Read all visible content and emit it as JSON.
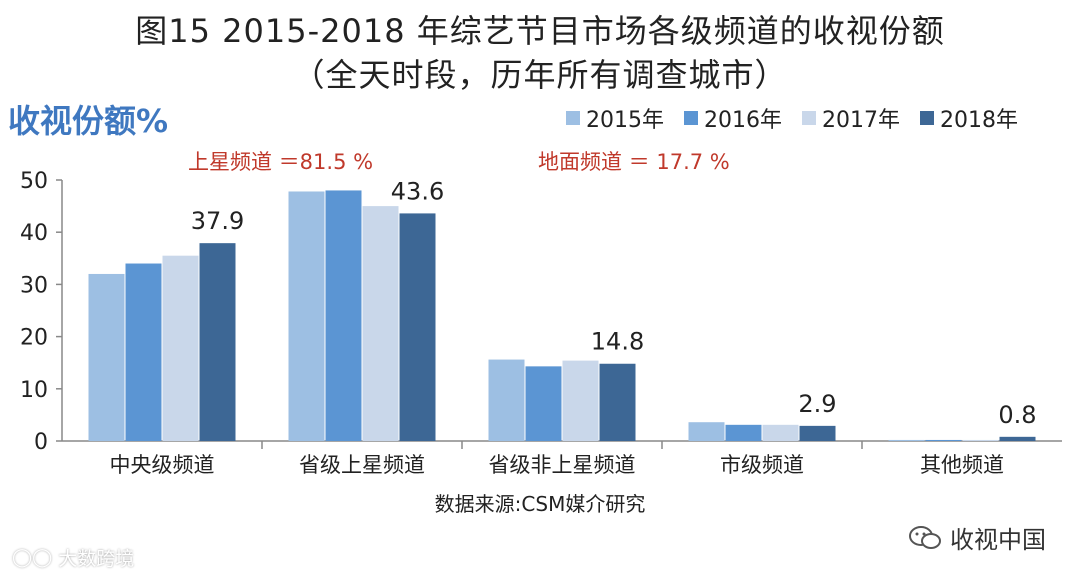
{
  "header": {
    "title_line1": "图15 2015-2018 年综艺节目市场各级频道的收视份额",
    "title_line2": "（全天时段，历年所有调查城市）"
  },
  "annotations": {
    "satellite": "上星频道 ＝81.5 %",
    "terrestrial": "地面频道 ＝ 17.7 %"
  },
  "footer": {
    "source": "数据来源:CSM媒介研究",
    "brand_right": "收视中国",
    "brand_left": "大数跨境"
  },
  "colors": {
    "2015": "#9dbfe3",
    "2016": "#5b95d3",
    "2017": "#c9d7ea",
    "2018": "#3d6795",
    "axis": "#888888"
  },
  "chart_data": {
    "type": "bar",
    "ylabel": "收视份额%",
    "title": "",
    "xlabel": "",
    "categories": [
      "中央级频道",
      "省级上星频道",
      "省级非上星频道",
      "市级频道",
      "其他频道"
    ],
    "series": [
      {
        "name": "2015年",
        "values": [
          32.0,
          47.8,
          15.6,
          3.6,
          0.2
        ]
      },
      {
        "name": "2016年",
        "values": [
          34.0,
          48.0,
          14.3,
          3.1,
          0.2
        ]
      },
      {
        "name": "2017年",
        "values": [
          35.5,
          45.0,
          15.4,
          3.1,
          0.2
        ]
      },
      {
        "name": "2018年",
        "values": [
          37.9,
          43.6,
          14.8,
          2.9,
          0.8
        ]
      }
    ],
    "data_labels": [
      "37.9",
      "43.6",
      "14.8",
      "2.9",
      "0.8"
    ],
    "ylim": [
      0,
      50
    ],
    "yticks": [
      "0",
      "10",
      "20",
      "30",
      "40",
      "50"
    ],
    "legend_position": "top-right",
    "grid": false
  }
}
